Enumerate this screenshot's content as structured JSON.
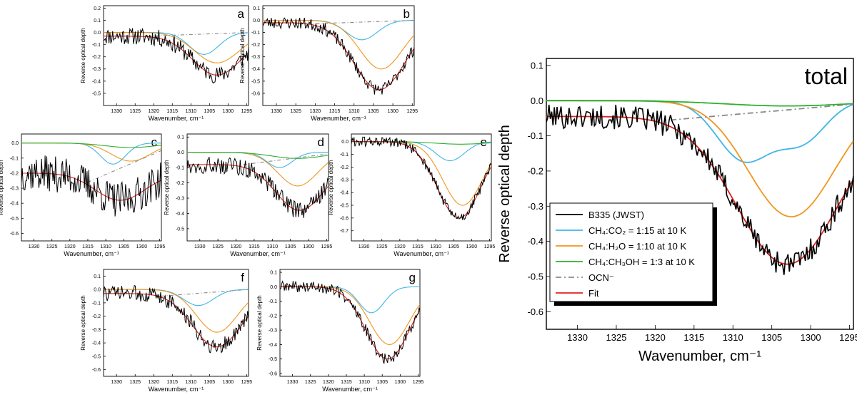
{
  "colors": {
    "obs": "#000000",
    "co2": "#3fb6e8",
    "h2o": "#f0961e",
    "ch3oh": "#2db02d",
    "ocn": "#8a8a8a",
    "fit": "#e0201c"
  },
  "legend": {
    "obs": "B335 (JWST)",
    "co2": "CH₄:CO₂ = 1:15 at 10 K",
    "h2o": "CH₄:H₂O = 1:10 at 10 K",
    "ch3oh": "CH₄:CH₃OH = 1:3 at 10 K",
    "ocn": "OCN⁻",
    "fit": "Fit"
  },
  "chart_data": [
    {
      "panel": "a",
      "type": "line",
      "title": "a",
      "xlabel": "Wavenumber, cm⁻¹",
      "ylabel": "Reverse optical depth",
      "xlim": [
        1333.5,
        1294.5
      ],
      "ylim": [
        -0.6,
        0.22
      ],
      "xticks": [
        1330,
        1325,
        1320,
        1315,
        1310,
        1305,
        1300,
        1295
      ],
      "yticks": [
        0.2,
        0.1,
        0.0,
        -0.1,
        -0.2,
        -0.3,
        -0.4,
        -0.5
      ],
      "series": [
        {
          "name": "CH₄:CO₂",
          "key": "co2",
          "center": 1306.5,
          "depth": -0.18,
          "width": 4,
          "base": 0.0
        },
        {
          "name": "CH₄:H₂O",
          "key": "h2o",
          "center": 1303,
          "depth": -0.25,
          "width": 6,
          "base": 0.0
        },
        {
          "name": "OCN⁻",
          "key": "ocn",
          "start": [
            1322,
            -0.03
          ],
          "end": [
            1294.5,
            0.0
          ]
        },
        {
          "name": "Fit",
          "key": "fit",
          "center": 1303,
          "depth": -0.32,
          "width": 6.5,
          "base": -0.03
        },
        {
          "name": "B335 (JWST)",
          "key": "obs",
          "noise": 0.07,
          "seed": 11
        }
      ]
    },
    {
      "panel": "b",
      "type": "line",
      "title": "b",
      "xlabel": "Wavenumber, cm⁻¹",
      "ylabel": "Reverse optical depth",
      "xlim": [
        1333.5,
        1294.5
      ],
      "ylim": [
        -0.7,
        0.12
      ],
      "xticks": [
        1330,
        1325,
        1320,
        1315,
        1310,
        1305,
        1300,
        1295
      ],
      "yticks": [
        0.1,
        0.0,
        -0.1,
        -0.2,
        -0.3,
        -0.4,
        -0.5,
        -0.6
      ],
      "series": [
        {
          "name": "CH₄:CO₂",
          "key": "co2",
          "center": 1308,
          "depth": -0.16,
          "width": 4,
          "base": 0.0
        },
        {
          "name": "CH₄:H₂O",
          "key": "h2o",
          "center": 1303,
          "depth": -0.4,
          "width": 5.5,
          "base": 0.0
        },
        {
          "name": "OCN⁻",
          "key": "ocn",
          "start": [
            1322,
            -0.03
          ],
          "end": [
            1294.5,
            0.0
          ]
        },
        {
          "name": "Fit",
          "key": "fit",
          "center": 1303.5,
          "depth": -0.55,
          "width": 6.5,
          "base": -0.02
        },
        {
          "name": "B335 (JWST)",
          "key": "obs",
          "noise": 0.05,
          "seed": 23
        }
      ]
    },
    {
      "panel": "c",
      "type": "line",
      "title": "c",
      "xlabel": "Wavenumber, cm⁻¹",
      "ylabel": "Reverse optical depth",
      "xlim": [
        1333.5,
        1294.5
      ],
      "ylim": [
        -0.65,
        0.06
      ],
      "xticks": [
        1330,
        1325,
        1320,
        1315,
        1310,
        1305,
        1300,
        1295
      ],
      "yticks": [
        0.0,
        -0.1,
        -0.2,
        -0.3,
        -0.4,
        -0.5,
        -0.6
      ],
      "series": [
        {
          "name": "CH₄:CO₂",
          "key": "co2",
          "center": 1308,
          "depth": -0.14,
          "width": 3.5,
          "base": 0.0
        },
        {
          "name": "CH₄:H₂O",
          "key": "h2o",
          "center": 1303,
          "depth": -0.12,
          "width": 5.5,
          "base": 0.0
        },
        {
          "name": "CH₄:CH₃OH",
          "key": "ch3oh",
          "center": 1303,
          "depth": -0.03,
          "width": 7,
          "base": 0.0
        },
        {
          "name": "OCN⁻",
          "key": "ocn",
          "start": [
            1315,
            -0.26
          ],
          "end": [
            1294.5,
            -0.05
          ]
        },
        {
          "name": "Fit",
          "key": "fit",
          "center": 1306,
          "depth": -0.18,
          "width": 7,
          "base": -0.2
        },
        {
          "name": "B335 (JWST)",
          "key": "obs",
          "noise": 0.12,
          "seed": 37
        }
      ]
    },
    {
      "panel": "d",
      "type": "line",
      "title": "d",
      "xlabel": "Wavenumber, cm⁻¹",
      "ylabel": "Reverse optical depth",
      "xlim": [
        1333.5,
        1294.5
      ],
      "ylim": [
        -0.58,
        0.12
      ],
      "xticks": [
        1330,
        1325,
        1320,
        1315,
        1310,
        1305,
        1300,
        1295
      ],
      "yticks": [
        0.1,
        0.0,
        -0.1,
        -0.2,
        -0.3,
        -0.4,
        -0.5
      ],
      "series": [
        {
          "name": "CH₄:CO₂",
          "key": "co2",
          "center": 1308,
          "depth": -0.1,
          "width": 3.5,
          "base": 0.0
        },
        {
          "name": "CH₄:H₂O",
          "key": "h2o",
          "center": 1303,
          "depth": -0.22,
          "width": 5.5,
          "base": 0.0
        },
        {
          "name": "CH₄:CH₃OH",
          "key": "ch3oh",
          "center": 1303,
          "depth": -0.04,
          "width": 7,
          "base": 0.0
        },
        {
          "name": "OCN⁻",
          "key": "ocn",
          "start": [
            1318,
            -0.08
          ],
          "end": [
            1294.5,
            -0.01
          ]
        },
        {
          "name": "Fit",
          "key": "fit",
          "center": 1302.5,
          "depth": -0.3,
          "width": 6.5,
          "base": -0.08
        },
        {
          "name": "B335 (JWST)",
          "key": "obs",
          "noise": 0.06,
          "seed": 49
        }
      ]
    },
    {
      "panel": "e",
      "type": "line",
      "title": "e",
      "xlabel": "Wavenumber, cm⁻¹",
      "ylabel": "Reverse optical depth",
      "xlim": [
        1333.5,
        1294.5
      ],
      "ylim": [
        -0.78,
        0.06
      ],
      "xticks": [
        1330,
        1325,
        1320,
        1315,
        1310,
        1305,
        1300,
        1295
      ],
      "yticks": [
        0.0,
        -0.1,
        -0.2,
        -0.3,
        -0.4,
        -0.5,
        -0.6,
        -0.7
      ],
      "series": [
        {
          "name": "CH₄:CO₂",
          "key": "co2",
          "center": 1306,
          "depth": -0.15,
          "width": 4,
          "base": 0.0
        },
        {
          "name": "CH₄:H₂O",
          "key": "h2o",
          "center": 1302.5,
          "depth": -0.5,
          "width": 5.5,
          "base": 0.0
        },
        {
          "name": "CH₄:CH₃OH",
          "key": "ch3oh",
          "center": 1303,
          "depth": -0.02,
          "width": 7,
          "base": 0.0
        },
        {
          "name": "Fit",
          "key": "fit",
          "center": 1303.5,
          "depth": -0.6,
          "width": 6,
          "base": 0.0
        },
        {
          "name": "B335 (JWST)",
          "key": "obs",
          "noise": 0.04,
          "seed": 61
        }
      ]
    },
    {
      "panel": "f",
      "type": "line",
      "title": "f",
      "xlabel": "Wavenumber, cm⁻¹",
      "ylabel": "Reverse optical depth",
      "xlim": [
        1333.5,
        1294.5
      ],
      "ylim": [
        -0.65,
        0.15
      ],
      "xticks": [
        1330,
        1325,
        1320,
        1315,
        1310,
        1305,
        1300,
        1295
      ],
      "yticks": [
        0.1,
        0.0,
        -0.1,
        -0.2,
        -0.3,
        -0.4,
        -0.5,
        -0.6
      ],
      "series": [
        {
          "name": "CH₄:CO₂",
          "key": "co2",
          "center": 1308,
          "depth": -0.12,
          "width": 4,
          "base": 0.0
        },
        {
          "name": "CH₄:H₂O",
          "key": "h2o",
          "center": 1303,
          "depth": -0.32,
          "width": 5.5,
          "base": 0.0
        },
        {
          "name": "OCN⁻",
          "key": "ocn",
          "start": [
            1318,
            -0.05
          ],
          "end": [
            1294.5,
            0.0
          ]
        },
        {
          "name": "Fit",
          "key": "fit",
          "center": 1303,
          "depth": -0.4,
          "width": 6.5,
          "base": -0.03
        },
        {
          "name": "B335 (JWST)",
          "key": "obs",
          "noise": 0.06,
          "seed": 73
        }
      ]
    },
    {
      "panel": "g",
      "type": "line",
      "title": "g",
      "xlabel": "Wavenumber, cm⁻¹",
      "ylabel": "Reverse optical depth",
      "xlim": [
        1333.5,
        1294.5
      ],
      "ylim": [
        -0.62,
        0.12
      ],
      "xticks": [
        1330,
        1325,
        1320,
        1315,
        1310,
        1305,
        1300,
        1295
      ],
      "yticks": [
        0.1,
        0.0,
        -0.1,
        -0.2,
        -0.3,
        -0.4,
        -0.5,
        -0.6
      ],
      "series": [
        {
          "name": "CH₄:CO₂",
          "key": "co2",
          "center": 1308,
          "depth": -0.18,
          "width": 3.5,
          "base": 0.0
        },
        {
          "name": "CH₄:H₂O",
          "key": "h2o",
          "center": 1303,
          "depth": -0.4,
          "width": 5.5,
          "base": 0.0
        },
        {
          "name": "Fit",
          "key": "fit",
          "center": 1303.5,
          "depth": -0.5,
          "width": 6,
          "base": 0.0
        },
        {
          "name": "B335 (JWST)",
          "key": "obs",
          "noise": 0.04,
          "seed": 89
        }
      ]
    },
    {
      "panel": "total",
      "type": "line",
      "title": "total",
      "xlabel": "Wavenumber, cm⁻¹",
      "ylabel": "Reverse optical depth",
      "xlim": [
        1334,
        1294.5
      ],
      "ylim": [
        -0.65,
        0.12
      ],
      "xticks": [
        1330,
        1325,
        1320,
        1315,
        1310,
        1305,
        1300,
        1295
      ],
      "yticks": [
        0.1,
        0.0,
        -0.1,
        -0.2,
        -0.3,
        -0.4,
        -0.5,
        -0.6
      ],
      "series": [
        {
          "name": "CH₄:CO₂",
          "key": "co2",
          "center": 1308.5,
          "depth": -0.17,
          "width": 3.5,
          "base": 0.0,
          "second": [
            1301,
            -0.11,
            3
          ]
        },
        {
          "name": "CH₄:H₂O",
          "key": "h2o",
          "center": 1302.5,
          "depth": -0.33,
          "width": 5.5,
          "base": 0.0
        },
        {
          "name": "CH₄:CH₃OH",
          "key": "ch3oh",
          "center": 1303,
          "depth": -0.015,
          "width": 8,
          "base": 0.0
        },
        {
          "name": "OCN⁻",
          "key": "ocn",
          "start": [
            1318,
            -0.055
          ],
          "end": [
            1294.5,
            -0.01
          ]
        },
        {
          "name": "Fit",
          "key": "fit",
          "center": 1303,
          "depth": -0.42,
          "width": 6.5,
          "base": -0.045
        },
        {
          "name": "B335 (JWST)",
          "key": "obs",
          "noise": 0.035,
          "seed": 101
        }
      ]
    }
  ]
}
